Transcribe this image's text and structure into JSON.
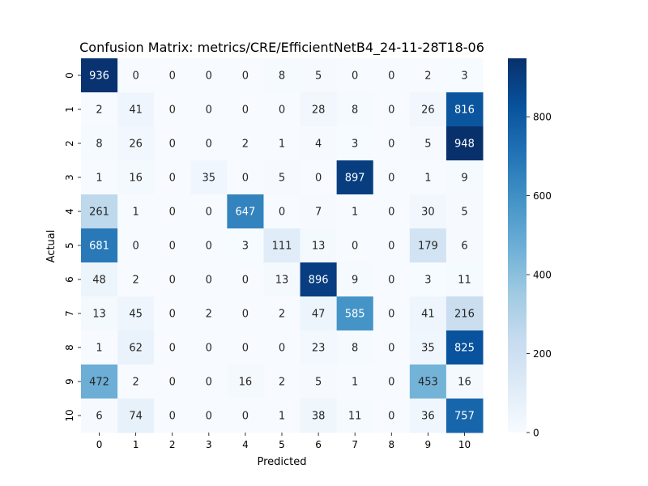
{
  "chart_data": {
    "type": "heatmap",
    "title": "Confusion Matrix: metrics/CRE/EfficientNetB4_24-11-28T18-06",
    "xlabel": "Predicted",
    "ylabel": "Actual",
    "x_categories": [
      "0",
      "1",
      "2",
      "3",
      "4",
      "5",
      "6",
      "7",
      "8",
      "9",
      "10"
    ],
    "y_categories": [
      "0",
      "1",
      "2",
      "3",
      "4",
      "5",
      "6",
      "7",
      "8",
      "9",
      "10"
    ],
    "values": [
      [
        936,
        0,
        0,
        0,
        0,
        8,
        5,
        0,
        0,
        2,
        3
      ],
      [
        2,
        41,
        0,
        0,
        0,
        0,
        28,
        8,
        0,
        26,
        816
      ],
      [
        8,
        26,
        0,
        0,
        2,
        1,
        4,
        3,
        0,
        5,
        948
      ],
      [
        1,
        16,
        0,
        35,
        0,
        5,
        0,
        897,
        0,
        1,
        9
      ],
      [
        261,
        1,
        0,
        0,
        647,
        0,
        7,
        1,
        0,
        30,
        5
      ],
      [
        681,
        0,
        0,
        0,
        3,
        111,
        13,
        0,
        0,
        179,
        6
      ],
      [
        48,
        2,
        0,
        0,
        0,
        13,
        896,
        9,
        0,
        3,
        11
      ],
      [
        13,
        45,
        0,
        2,
        0,
        2,
        47,
        585,
        0,
        41,
        216
      ],
      [
        1,
        62,
        0,
        0,
        0,
        0,
        23,
        8,
        0,
        35,
        825
      ],
      [
        472,
        2,
        0,
        0,
        16,
        2,
        5,
        1,
        0,
        453,
        16
      ],
      [
        6,
        74,
        0,
        0,
        0,
        1,
        38,
        11,
        0,
        36,
        757
      ]
    ],
    "colormap": "Blues",
    "colorbar": {
      "range": [
        0,
        948
      ],
      "ticks": [
        "0",
        "200",
        "400",
        "600",
        "800"
      ]
    },
    "grid": false
  }
}
